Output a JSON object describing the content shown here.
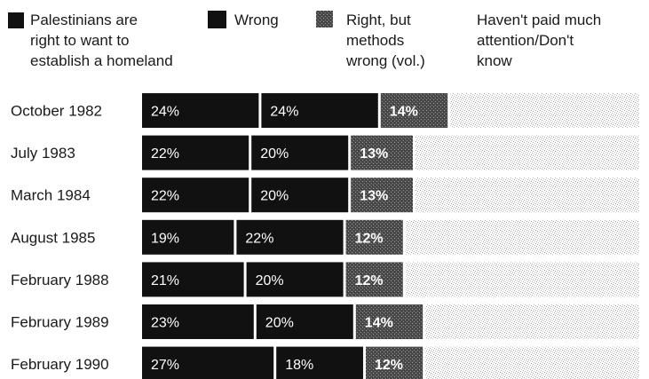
{
  "chart_data": {
    "type": "bar",
    "orientation": "horizontal",
    "stacked": true,
    "categories": [
      "October 1982",
      "July 1983",
      "March 1984",
      "August 1985",
      "February 1988",
      "February 1989",
      "February 1990"
    ],
    "series": [
      {
        "name": "Palestinians are right to want to establish a homeland",
        "values": [
          24,
          22,
          22,
          19,
          21,
          23,
          27
        ],
        "labels": [
          "24%",
          "22%",
          "22%",
          "19%",
          "21%",
          "23%",
          "27%"
        ],
        "color": "#111111"
      },
      {
        "name": "Wrong",
        "values": [
          24,
          20,
          20,
          22,
          20,
          20,
          18
        ],
        "labels": [
          "24%",
          "20%",
          "20%",
          "22%",
          "20%",
          "20%",
          "18%"
        ],
        "color": "#111111"
      },
      {
        "name": "Right, but methods wrong (vol.)",
        "values": [
          14,
          13,
          13,
          12,
          12,
          14,
          12
        ],
        "labels": [
          "14%",
          "13%",
          "13%",
          "12%",
          "12%",
          "14%",
          "12%"
        ],
        "color": "#555555"
      },
      {
        "name": "Haven't paid much attention/Don't know",
        "values": [
          38,
          45,
          45,
          47,
          47,
          43,
          43
        ],
        "labels": [
          "",
          "",
          "",
          "",
          "",
          "",
          ""
        ],
        "color": "#d2d2d2"
      }
    ],
    "xlim": [
      0,
      100
    ]
  },
  "legend": [
    {
      "lines": [
        "Palestinians are",
        "right to want to",
        "establish a homeland"
      ],
      "swatch_color": "#111111"
    },
    {
      "lines": [
        "Wrong"
      ],
      "swatch_color": "#111111"
    },
    {
      "lines": [
        "Right, but",
        "methods",
        "wrong (vol.)"
      ],
      "swatch_color": "#666666"
    },
    {
      "lines": [
        "Haven't paid much",
        "attention/Don't",
        "know"
      ],
      "swatch_color": ""
    }
  ]
}
